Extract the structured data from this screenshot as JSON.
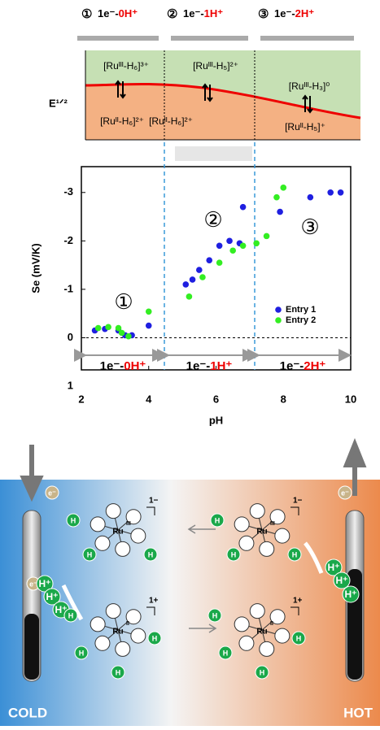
{
  "header": {
    "items": [
      {
        "num": "①",
        "text": "1e⁻-",
        "hl": "0H⁺"
      },
      {
        "num": "②",
        "text": "1e⁻-",
        "hl": "1H⁺"
      },
      {
        "num": "③",
        "text": "1e⁻-",
        "hl": "2H⁺"
      }
    ]
  },
  "energy": {
    "ylabel": "E¹ᐟ²",
    "upper": [
      "[Ruᴵᴵᴵ-H₆]³⁺",
      "[Ruᴵᴵᴵ-H₅]²⁺",
      "[Ruᴵᴵᴵ-H₃]⁰"
    ],
    "lower": [
      "[Ruᴵᴵ-H₆]²⁺",
      "[Ruᴵᴵ-H₆]²⁺",
      "[Ruᴵᴵ-H₅]⁺"
    ]
  },
  "chart_data": {
    "type": "scatter",
    "xlabel": "pH",
    "ylabel": "Se (mV/K)",
    "xlim": [
      2,
      10
    ],
    "xticks": [
      2,
      4,
      6,
      8,
      10
    ],
    "ylim": [
      1,
      -3.5
    ],
    "yticks": [
      -3,
      -2,
      -1,
      0,
      1
    ],
    "series": [
      {
        "name": "Entry 1",
        "color": "#1f1fe0",
        "x": [
          2.4,
          2.7,
          3.1,
          3.3,
          3.5,
          4.0,
          5.1,
          5.3,
          5.5,
          5.8,
          6.1,
          6.4,
          6.7,
          6.8,
          7.9,
          8.8,
          9.4,
          9.7
        ],
        "values": [
          -0.15,
          -0.18,
          -0.15,
          -0.05,
          -0.05,
          -0.25,
          -1.1,
          -1.2,
          -1.4,
          -1.6,
          -1.9,
          -2.0,
          -1.95,
          -2.7,
          -2.6,
          -2.9,
          -3.0,
          -3.0
        ]
      },
      {
        "name": "Entry 2",
        "color": "#33ee22",
        "x": [
          2.5,
          2.8,
          3.1,
          3.2,
          3.4,
          4.0,
          5.2,
          5.6,
          6.1,
          6.5,
          6.8,
          7.2,
          7.5,
          7.8,
          8.0
        ],
        "values": [
          -0.2,
          -0.22,
          -0.2,
          -0.1,
          -0.03,
          -0.54,
          -0.85,
          -1.25,
          -1.55,
          -1.8,
          -1.9,
          -1.95,
          -2.1,
          -2.9,
          -3.1
        ]
      }
    ],
    "region_numbers": [
      "①",
      "②",
      "③"
    ],
    "region_labels": [
      {
        "text": "1e⁻-",
        "hl": "0H⁺"
      },
      {
        "text": "1e⁻-",
        "hl": "1H⁺"
      },
      {
        "text": "1e⁻-",
        "hl": "2H⁺"
      }
    ]
  },
  "bottom_panel": {
    "cold": "COLD",
    "hot": "HOT",
    "electron": "e⁻",
    "proton": "H⁺",
    "h": "H",
    "ru": "Ru",
    "charges": [
      "1−",
      "1−",
      "1+",
      "1+"
    ],
    "ox": [
      "III",
      "III",
      "II",
      "II"
    ]
  }
}
